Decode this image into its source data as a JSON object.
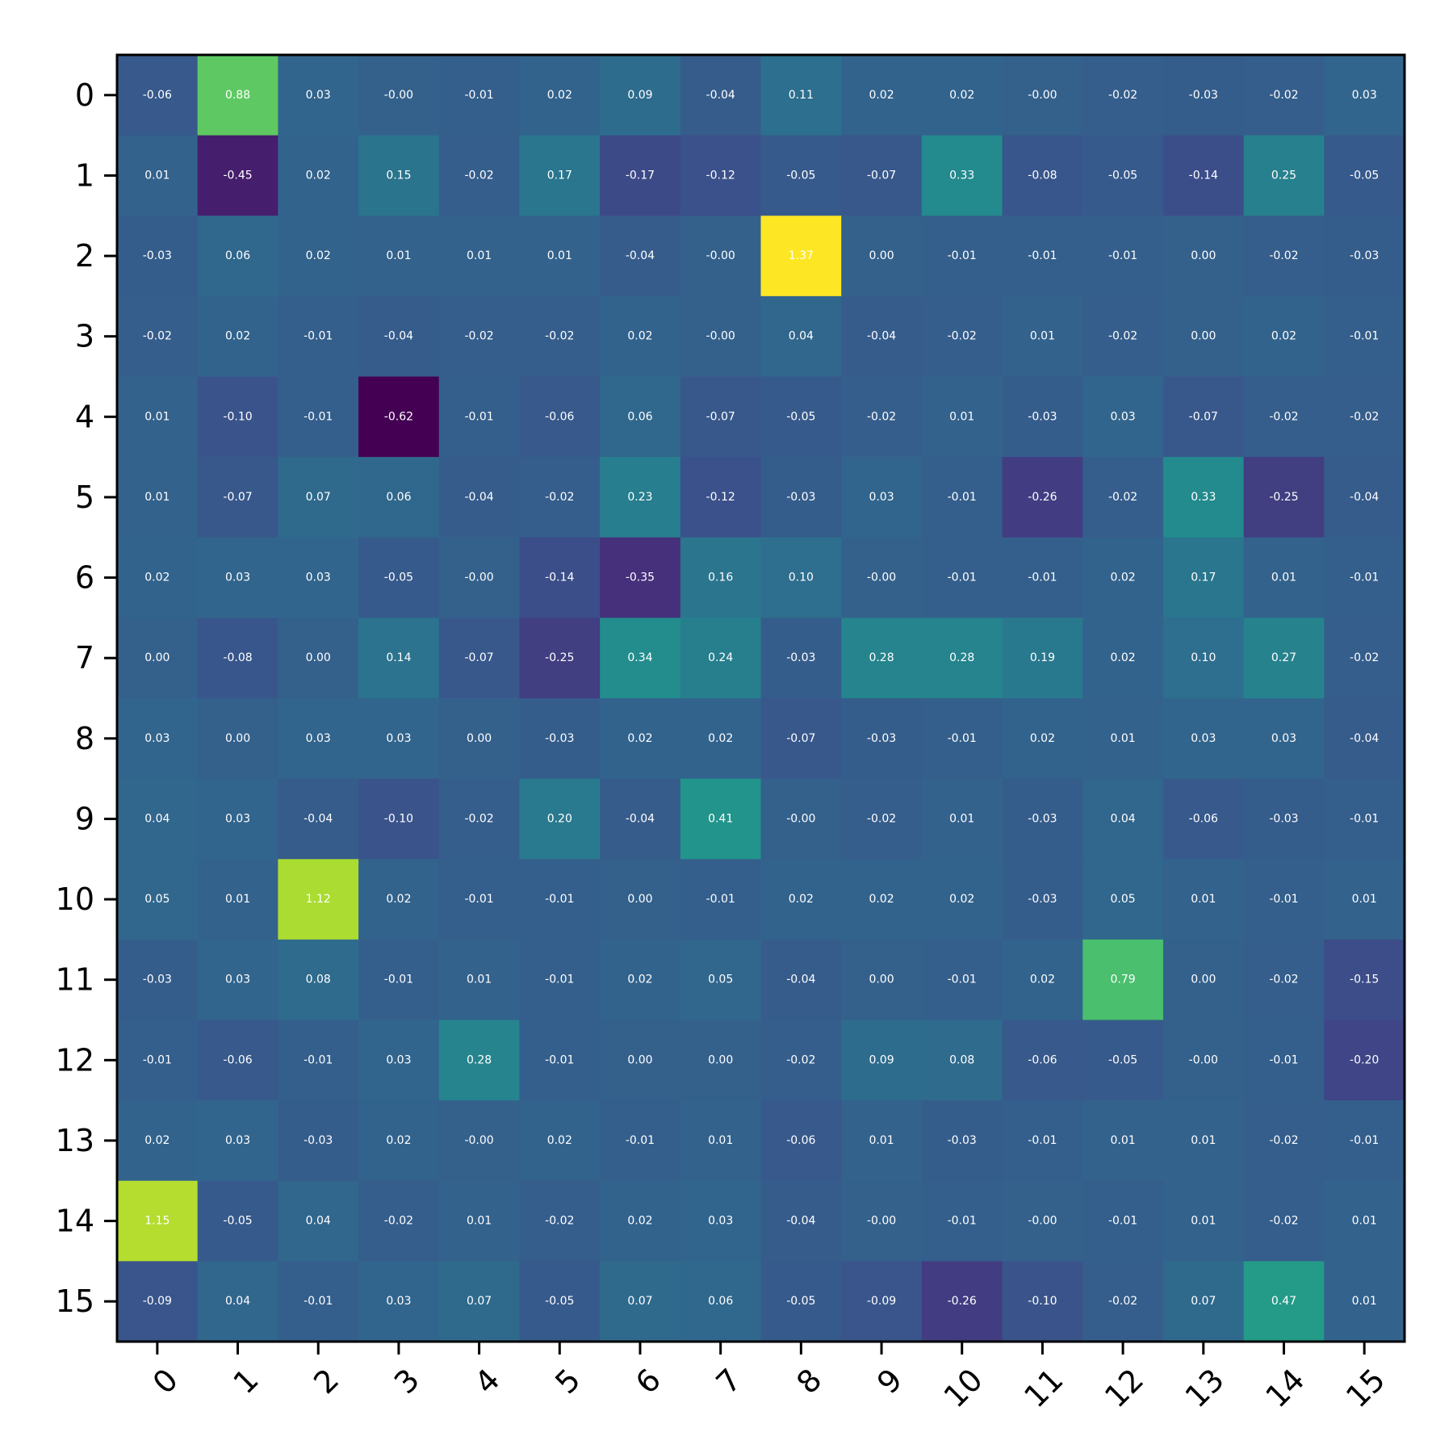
{
  "chart_data": {
    "type": "heatmap",
    "title": "",
    "xlabel": "",
    "ylabel": "",
    "colormap": "viridis",
    "vmin": -0.62,
    "vmax": 1.37,
    "x_categories": [
      "0",
      "1",
      "2",
      "3",
      "4",
      "5",
      "6",
      "7",
      "8",
      "9",
      "10",
      "11",
      "12",
      "13",
      "14",
      "15"
    ],
    "y_categories": [
      "0",
      "1",
      "2",
      "3",
      "4",
      "5",
      "6",
      "7",
      "8",
      "9",
      "10",
      "11",
      "12",
      "13",
      "14",
      "15"
    ],
    "values": [
      [
        -0.06,
        0.88,
        0.03,
        -0.0,
        -0.01,
        0.02,
        0.09,
        -0.04,
        0.11,
        0.02,
        0.02,
        -0.0,
        -0.02,
        -0.03,
        -0.02,
        0.03
      ],
      [
        0.01,
        -0.45,
        0.02,
        0.15,
        -0.02,
        0.17,
        -0.17,
        -0.12,
        -0.05,
        -0.07,
        0.33,
        -0.08,
        -0.05,
        -0.14,
        0.25,
        -0.05
      ],
      [
        -0.03,
        0.06,
        0.02,
        0.01,
        0.01,
        0.01,
        -0.04,
        -0.0,
        1.37,
        0.0,
        -0.01,
        -0.01,
        -0.01,
        0.0,
        -0.02,
        -0.03
      ],
      [
        -0.02,
        0.02,
        -0.01,
        -0.04,
        -0.02,
        -0.02,
        0.02,
        -0.0,
        0.04,
        -0.04,
        -0.02,
        0.01,
        -0.02,
        0.0,
        0.02,
        -0.01
      ],
      [
        0.01,
        -0.1,
        -0.01,
        -0.62,
        -0.01,
        -0.06,
        0.06,
        -0.07,
        -0.05,
        -0.02,
        0.01,
        -0.03,
        0.03,
        -0.07,
        -0.02,
        -0.02
      ],
      [
        0.01,
        -0.07,
        0.07,
        0.06,
        -0.04,
        -0.02,
        0.23,
        -0.12,
        -0.03,
        0.03,
        -0.01,
        -0.26,
        -0.02,
        0.33,
        -0.25,
        -0.04
      ],
      [
        0.02,
        0.03,
        0.03,
        -0.05,
        -0.0,
        -0.14,
        -0.35,
        0.16,
        0.1,
        -0.0,
        -0.01,
        -0.01,
        0.02,
        0.17,
        0.01,
        -0.01
      ],
      [
        0.0,
        -0.08,
        0.0,
        0.14,
        -0.07,
        -0.25,
        0.34,
        0.24,
        -0.03,
        0.28,
        0.28,
        0.19,
        0.02,
        0.1,
        0.27,
        -0.02
      ],
      [
        0.03,
        0.0,
        0.03,
        0.03,
        0.0,
        -0.03,
        0.02,
        0.02,
        -0.07,
        -0.03,
        -0.01,
        0.02,
        0.01,
        0.03,
        0.03,
        -0.04
      ],
      [
        0.04,
        0.03,
        -0.04,
        -0.1,
        -0.02,
        0.2,
        -0.04,
        0.41,
        -0.0,
        -0.02,
        0.01,
        -0.03,
        0.04,
        -0.06,
        -0.03,
        -0.01
      ],
      [
        0.05,
        0.01,
        1.12,
        0.02,
        -0.01,
        -0.01,
        0.0,
        -0.01,
        0.02,
        0.02,
        0.02,
        -0.03,
        0.05,
        0.01,
        -0.01,
        0.01
      ],
      [
        -0.03,
        0.03,
        0.08,
        -0.01,
        0.01,
        -0.01,
        0.02,
        0.05,
        -0.04,
        0.0,
        -0.01,
        0.02,
        0.79,
        0.0,
        -0.02,
        -0.15
      ],
      [
        -0.01,
        -0.06,
        -0.01,
        0.03,
        0.28,
        -0.01,
        0.0,
        0.0,
        -0.02,
        0.09,
        0.08,
        -0.06,
        -0.05,
        -0.0,
        -0.01,
        -0.2
      ],
      [
        0.02,
        0.03,
        -0.03,
        0.02,
        -0.0,
        0.02,
        -0.01,
        0.01,
        -0.06,
        0.01,
        -0.03,
        -0.01,
        0.01,
        0.01,
        -0.02,
        -0.01
      ],
      [
        1.15,
        -0.05,
        0.04,
        -0.02,
        0.01,
        -0.02,
        0.02,
        0.03,
        -0.04,
        -0.0,
        -0.01,
        -0.0,
        -0.01,
        0.01,
        -0.02,
        0.01
      ],
      [
        -0.09,
        0.04,
        -0.01,
        0.03,
        0.07,
        -0.05,
        0.07,
        0.06,
        -0.05,
        -0.09,
        -0.26,
        -0.1,
        -0.02,
        0.07,
        0.47,
        0.01
      ]
    ],
    "value_format_decimals": 2,
    "grid": false,
    "legend": "none"
  }
}
